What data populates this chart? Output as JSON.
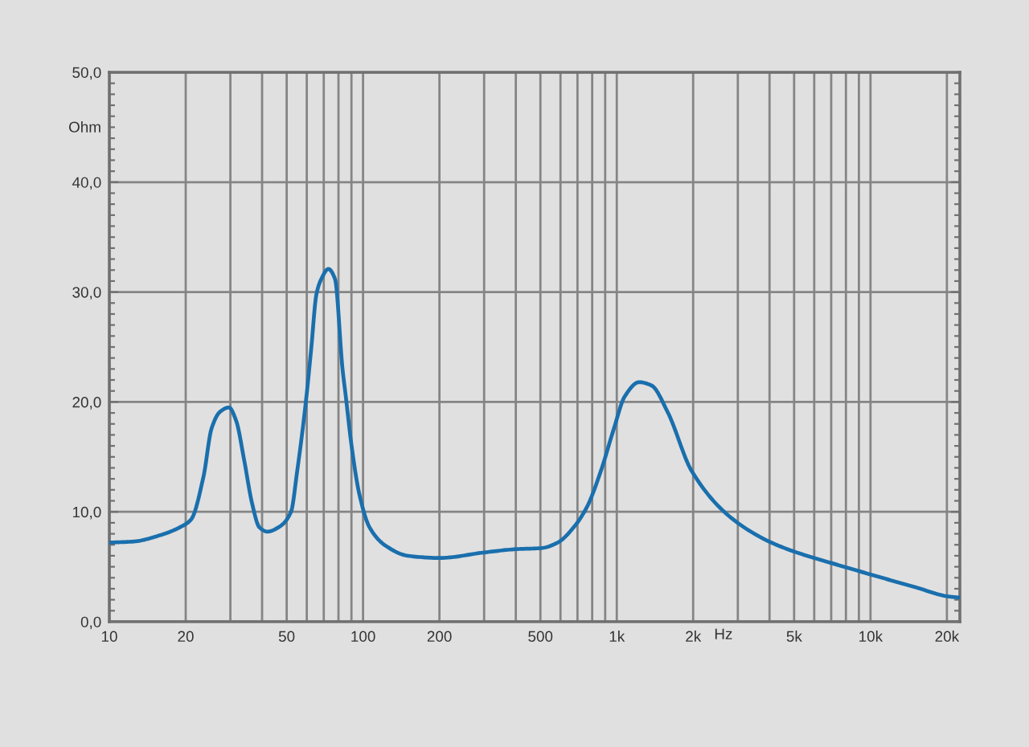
{
  "chart_data": {
    "type": "line",
    "xlabel": "Hz",
    "ylabel": "Ohm",
    "log": "x",
    "grid": true,
    "xlim": [
      10,
      22500
    ],
    "ylim": [
      0,
      50
    ],
    "xticks": [
      10,
      20,
      {
        "value": 30,
        "label": null
      },
      {
        "value": 40,
        "label": null
      },
      50,
      {
        "value": 60,
        "label": null
      },
      {
        "value": 70,
        "label": null
      },
      {
        "value": 80,
        "label": null
      },
      {
        "value": 90,
        "label": null
      },
      100,
      200,
      {
        "value": 300,
        "label": null
      },
      {
        "value": 400,
        "label": null
      },
      500,
      {
        "value": 600,
        "label": null
      },
      {
        "value": 700,
        "label": null
      },
      {
        "value": 800,
        "label": null
      },
      {
        "value": 900,
        "label": null
      },
      {
        "value": 1000,
        "label": "1k"
      },
      {
        "value": 2000,
        "label": "2k"
      },
      {
        "value": 3000,
        "label": null
      },
      {
        "value": 4000,
        "label": null
      },
      {
        "value": 5000,
        "label": "5k"
      },
      {
        "value": 6000,
        "label": null
      },
      {
        "value": 7000,
        "label": null
      },
      {
        "value": 8000,
        "label": null
      },
      {
        "value": 9000,
        "label": null
      },
      {
        "value": 10000,
        "label": "10k"
      },
      {
        "value": 20000,
        "label": "20k"
      }
    ],
    "yticks": [
      {
        "value": 0,
        "label": "0,0"
      },
      {
        "value": 10,
        "label": "10,0"
      },
      {
        "value": 20,
        "label": "20,0"
      },
      {
        "value": 30,
        "label": "30,0"
      },
      {
        "value": 40,
        "label": "40,0"
      },
      {
        "value": 50,
        "label": "50,0"
      }
    ],
    "x": [
      10,
      12.5,
      16,
      19,
      21,
      23.5,
      25.3,
      27.3,
      29.6,
      31.6,
      34,
      36.5,
      39,
      42,
      46.5,
      52,
      55,
      59.5,
      62.5,
      65.5,
      68.5,
      73,
      77.5,
      83,
      85.5,
      90,
      96.5,
      106,
      123,
      150,
      200,
      300,
      400,
      505,
      585,
      677,
      765,
      865,
      975,
      1075,
      1225,
      1370,
      1585,
      1975,
      2775,
      3900,
      4975,
      7350,
      10000,
      15200,
      20200,
      22300
    ],
    "series": [
      {
        "color": "#1a6fad",
        "values": [
          7.2,
          7.3,
          7.9,
          8.6,
          9.3,
          13.2,
          17.6,
          19.1,
          19.5,
          18.3,
          14.7,
          10.8,
          8.6,
          8.2,
          8.6,
          10.0,
          13.7,
          20.0,
          24.9,
          29.8,
          31.2,
          32.1,
          31.2,
          23.0,
          20.5,
          16.1,
          11.7,
          8.6,
          6.9,
          6.0,
          5.8,
          6.3,
          6.6,
          6.7,
          7.2,
          8.6,
          10.5,
          13.7,
          17.6,
          20.5,
          21.8,
          21.5,
          19.1,
          13.7,
          9.6,
          7.4,
          6.4,
          5.2,
          4.3,
          3.1,
          2.3,
          2.2
        ]
      }
    ]
  }
}
